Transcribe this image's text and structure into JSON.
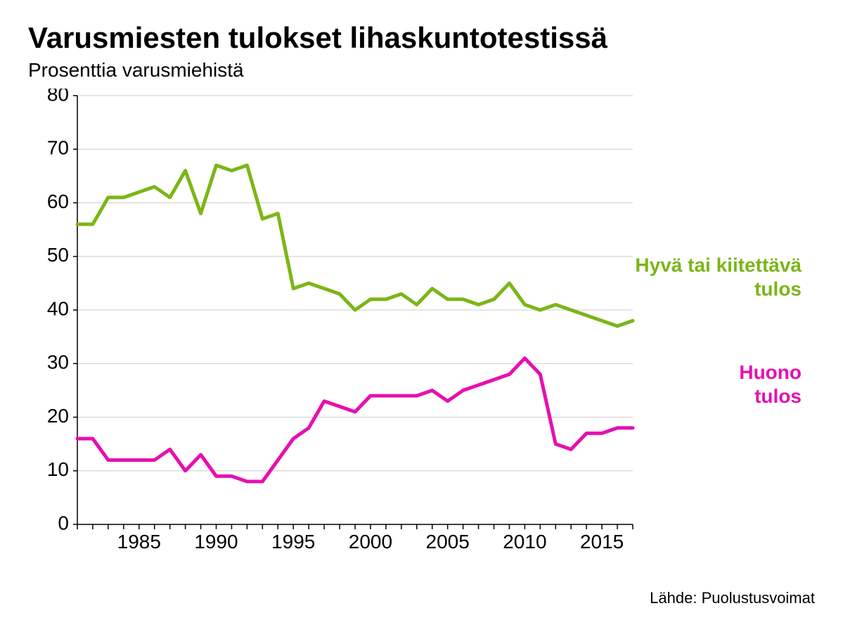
{
  "title": "Varusmiesten tulokset lihaskuntotestissä",
  "subtitle": "Prosenttia varusmiehistä",
  "source": "Lähde: Puolustusvoimat",
  "chart": {
    "type": "line",
    "background_color": "#ffffff",
    "grid_color": "#cccccc",
    "axis_color": "#000000",
    "title_fontsize": 42,
    "subtitle_fontsize": 28,
    "label_fontsize": 28,
    "line_width": 5,
    "xlim": [
      1981,
      2017
    ],
    "ylim": [
      0,
      80
    ],
    "ytick_step": 10,
    "yticks": [
      0,
      10,
      20,
      30,
      40,
      50,
      60,
      70,
      80
    ],
    "xticks": [
      1985,
      1990,
      1995,
      2000,
      2005,
      2010,
      2015
    ],
    "years": [
      1981,
      1982,
      1983,
      1984,
      1985,
      1986,
      1987,
      1988,
      1989,
      1990,
      1991,
      1992,
      1993,
      1994,
      1995,
      1996,
      1997,
      1998,
      1999,
      2000,
      2001,
      2002,
      2003,
      2004,
      2005,
      2006,
      2007,
      2008,
      2009,
      2010,
      2011,
      2012,
      2013,
      2014,
      2015,
      2016,
      2017
    ],
    "series": {
      "good": {
        "label_line1": "Hyvä tai kiitettävä",
        "label_line2": "tulos",
        "color": "#7cb518",
        "values": [
          56,
          56,
          61,
          61,
          62,
          63,
          61,
          66,
          58,
          67,
          66,
          67,
          57,
          58,
          44,
          45,
          44,
          43,
          40,
          42,
          42,
          43,
          41,
          44,
          42,
          42,
          41,
          42,
          45,
          41,
          40,
          41,
          40,
          39,
          38,
          37,
          38
        ]
      },
      "bad": {
        "label_line1": "Huono",
        "label_line2": "tulos",
        "color": "#e60fb1",
        "values": [
          16,
          16,
          12,
          12,
          12,
          12,
          14,
          10,
          13,
          9,
          9,
          8,
          8,
          12,
          16,
          18,
          23,
          22,
          21,
          24,
          24,
          24,
          24,
          25,
          23,
          25,
          26,
          27,
          28,
          31,
          28,
          15,
          14,
          17,
          17,
          18,
          18
        ]
      }
    }
  }
}
